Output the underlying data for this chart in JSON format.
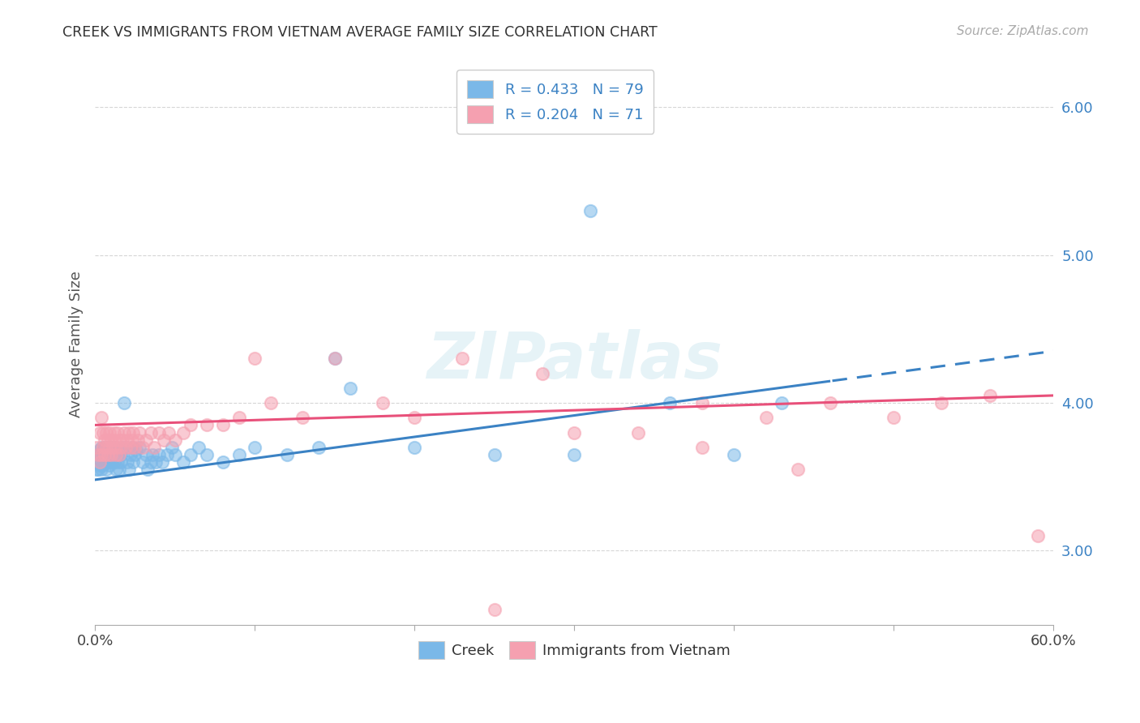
{
  "title": "CREEK VS IMMIGRANTS FROM VIETNAM AVERAGE FAMILY SIZE CORRELATION CHART",
  "source": "Source: ZipAtlas.com",
  "ylabel": "Average Family Size",
  "xmin": 0.0,
  "xmax": 0.6,
  "ymin": 2.5,
  "ymax": 6.3,
  "yticks": [
    3.0,
    4.0,
    5.0,
    6.0
  ],
  "watermark": "ZIPatlas",
  "creek_color": "#7ab8e8",
  "vietnam_color": "#f5a0b0",
  "creek_line_color": "#3b82c4",
  "vietnam_line_color": "#e8507a",
  "creek_line_x0": 0.0,
  "creek_line_y0": 3.48,
  "creek_line_x1": 0.6,
  "creek_line_y1": 4.35,
  "creek_line_solid_end": 0.46,
  "vietnam_line_x0": 0.0,
  "vietnam_line_y0": 3.85,
  "vietnam_line_x1": 0.6,
  "vietnam_line_y1": 4.05,
  "creek_scatter_x": [
    0.001,
    0.001,
    0.002,
    0.002,
    0.003,
    0.003,
    0.003,
    0.004,
    0.004,
    0.004,
    0.005,
    0.005,
    0.005,
    0.006,
    0.006,
    0.006,
    0.007,
    0.007,
    0.007,
    0.008,
    0.008,
    0.009,
    0.009,
    0.009,
    0.01,
    0.01,
    0.01,
    0.011,
    0.011,
    0.012,
    0.012,
    0.013,
    0.013,
    0.014,
    0.014,
    0.015,
    0.015,
    0.016,
    0.016,
    0.017,
    0.018,
    0.019,
    0.02,
    0.021,
    0.022,
    0.023,
    0.024,
    0.025,
    0.026,
    0.028,
    0.03,
    0.032,
    0.033,
    0.035,
    0.036,
    0.038,
    0.04,
    0.042,
    0.045,
    0.048,
    0.05,
    0.055,
    0.06,
    0.065,
    0.07,
    0.08,
    0.09,
    0.1,
    0.12,
    0.14,
    0.15,
    0.16,
    0.2,
    0.25,
    0.3,
    0.36,
    0.4,
    0.43,
    0.31
  ],
  "creek_scatter_y": [
    3.6,
    3.55,
    3.65,
    3.55,
    3.62,
    3.68,
    3.58,
    3.55,
    3.65,
    3.7,
    3.58,
    3.62,
    3.68,
    3.6,
    3.65,
    3.7,
    3.55,
    3.62,
    3.68,
    3.6,
    3.65,
    3.58,
    3.65,
    3.7,
    3.6,
    3.65,
    3.7,
    3.62,
    3.68,
    3.6,
    3.65,
    3.7,
    3.55,
    3.6,
    3.65,
    3.55,
    3.68,
    3.6,
    3.65,
    3.7,
    4.0,
    3.7,
    3.6,
    3.55,
    3.65,
    3.7,
    3.6,
    3.65,
    3.68,
    3.7,
    3.6,
    3.65,
    3.55,
    3.6,
    3.65,
    3.6,
    3.65,
    3.6,
    3.65,
    3.7,
    3.65,
    3.6,
    3.65,
    3.7,
    3.65,
    3.6,
    3.65,
    3.7,
    3.65,
    3.7,
    4.3,
    4.1,
    3.7,
    3.65,
    3.65,
    4.0,
    3.65,
    4.0,
    5.3
  ],
  "vietnam_scatter_x": [
    0.001,
    0.002,
    0.003,
    0.003,
    0.004,
    0.004,
    0.005,
    0.005,
    0.006,
    0.006,
    0.007,
    0.007,
    0.008,
    0.008,
    0.009,
    0.009,
    0.01,
    0.01,
    0.011,
    0.012,
    0.012,
    0.013,
    0.013,
    0.014,
    0.015,
    0.015,
    0.016,
    0.017,
    0.018,
    0.019,
    0.02,
    0.021,
    0.022,
    0.023,
    0.024,
    0.025,
    0.027,
    0.028,
    0.03,
    0.032,
    0.035,
    0.037,
    0.04,
    0.043,
    0.046,
    0.05,
    0.055,
    0.06,
    0.07,
    0.08,
    0.09,
    0.1,
    0.11,
    0.13,
    0.15,
    0.18,
    0.2,
    0.23,
    0.28,
    0.34,
    0.38,
    0.42,
    0.46,
    0.5,
    0.53,
    0.56,
    0.59,
    0.44,
    0.38,
    0.3,
    0.25
  ],
  "vietnam_scatter_y": [
    3.7,
    3.65,
    3.8,
    3.6,
    3.9,
    3.65,
    3.7,
    3.8,
    3.75,
    3.65,
    3.7,
    3.8,
    3.75,
    3.65,
    3.7,
    3.8,
    3.75,
    3.65,
    3.7,
    3.8,
    3.75,
    3.65,
    3.7,
    3.8,
    3.75,
    3.65,
    3.7,
    3.75,
    3.8,
    3.7,
    3.75,
    3.8,
    3.7,
    3.75,
    3.8,
    3.7,
    3.75,
    3.8,
    3.7,
    3.75,
    3.8,
    3.7,
    3.8,
    3.75,
    3.8,
    3.75,
    3.8,
    3.85,
    3.85,
    3.85,
    3.9,
    4.3,
    4.0,
    3.9,
    4.3,
    4.0,
    3.9,
    4.3,
    4.2,
    3.8,
    4.0,
    3.9,
    4.0,
    3.9,
    4.0,
    4.05,
    3.1,
    3.55,
    3.7,
    3.8,
    2.6
  ]
}
